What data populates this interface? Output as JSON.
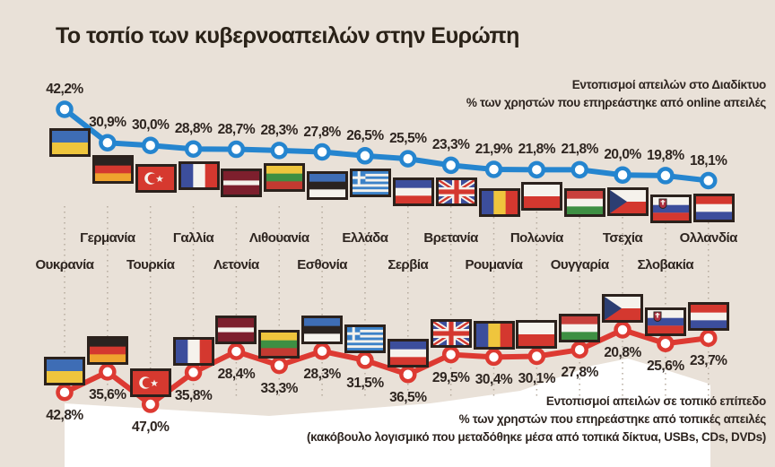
{
  "title": "Το τοπίο των κυβερνοαπειλών στην Ευρώπη",
  "legends": {
    "online": [
      "Εντοπισμοί απειλών στο Διαδίκτυο",
      "% των χρηστών που επηρεάστηκε από online απειλές"
    ],
    "local": [
      "Εντοπισμοί απειλών σε τοπικό επίπεδο",
      "% των χρηστών που επηρεάστηκε από τοπικές απειλές",
      "(κακόβουλο λογισμικό που μεταδόθηκε μέσα από τοπικά δίκτυα, USBs, CDs, DVDs)"
    ]
  },
  "colors": {
    "background": "#e9e1d8",
    "text": "#2e2520",
    "online_line": "#2585cf",
    "local_line": "#dd3a32",
    "flag_border": "#2b211c",
    "gridline": "#b6ab9e",
    "panel_white": "#ffffff"
  },
  "chart_data": {
    "type": "line",
    "title": "Το τοπίο των κυβερνοαπειλών στην Ευρώπη",
    "categories": [
      "Ουκρανία",
      "Γερμανία",
      "Τουρκία",
      "Γαλλία",
      "Λετονία",
      "Λιθουανία",
      "Εσθονία",
      "Ελλάδα",
      "Σερβία",
      "Βρετανία",
      "Ρουμανία",
      "Πολωνία",
      "Ουγγαρία",
      "Τσεχία",
      "Σλοβακία",
      "Ολλανδία"
    ],
    "categories_en": [
      "ukraine",
      "germany",
      "turkey",
      "france",
      "latvia",
      "lithuania",
      "estonia",
      "greece",
      "serbia",
      "britain",
      "romania",
      "poland",
      "hungary",
      "czechia",
      "slovakia",
      "netherlands"
    ],
    "flags": [
      "ua",
      "de",
      "tr",
      "fr",
      "lv",
      "lt",
      "ee",
      "gr",
      "rs",
      "gb",
      "ro",
      "pl",
      "hu",
      "cz",
      "sk",
      "nl"
    ],
    "value_format": "decimal-comma-percent",
    "legend_position": "right",
    "grid": "dotted-vertical",
    "series": [
      {
        "name": "online-threats",
        "legend_lines": [
          "Εντοπισμοί απειλών στο Διαδίκτυο",
          "% των χρηστών που επηρεάστηκε από online απειλές"
        ],
        "color": "#2585cf",
        "values": [
          42.2,
          30.9,
          30.0,
          28.8,
          28.7,
          28.3,
          27.8,
          26.5,
          25.5,
          23.3,
          21.9,
          21.8,
          21.8,
          20.0,
          19.8,
          18.1
        ]
      },
      {
        "name": "local-threats",
        "legend_lines": [
          "Εντοπισμοί απειλών σε τοπικό επίπεδο",
          "% των χρηστών που επηρεάστηκε από τοπικές απειλές",
          "(κακόβουλο λογισμικό που μεταδόθηκε μέσα από τοπικά δίκτυα, USBs, CDs, DVDs)"
        ],
        "color": "#dd3a32",
        "values": [
          42.8,
          35.6,
          47.0,
          35.8,
          28.4,
          33.3,
          28.3,
          31.5,
          36.5,
          29.5,
          30.4,
          30.1,
          27.8,
          20.8,
          25.6,
          23.7
        ],
        "note": "inverted-axis (higher % plotted lower)"
      }
    ]
  }
}
